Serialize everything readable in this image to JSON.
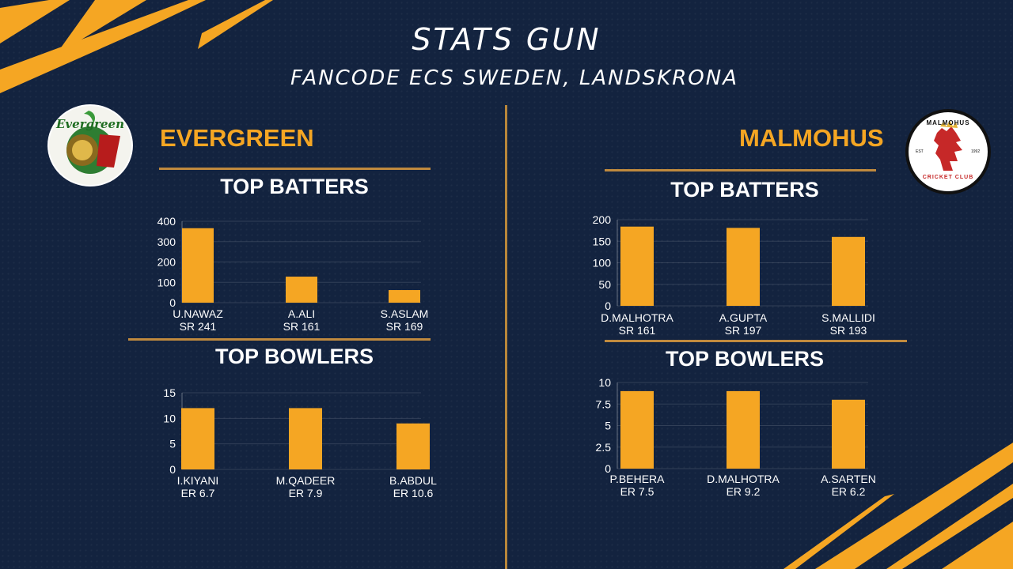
{
  "header": {
    "title": "STATS GUN",
    "subtitle": "FANCODE ECS SWEDEN, LANDSKRONA"
  },
  "teams": [
    {
      "name": "EVERGREEN",
      "logo_text": "Evergreen"
    },
    {
      "name": "MALMOHUS",
      "logo_text": "MALMOHUS",
      "logo_subtext": "CRICKET CLUB",
      "logo_est": "EST",
      "logo_year": "1992"
    }
  ],
  "sections": {
    "batters": "TOP BATTERS",
    "bowlers": "TOP BOWLERS"
  },
  "colors": {
    "bar": "#f5a623",
    "background": "#13233f",
    "accent_line": "#c08a3e",
    "team_name": "#f5a623"
  },
  "chart_data": [
    {
      "type": "bar",
      "title": "TOP BATTERS",
      "team": "EVERGREEN",
      "categories": [
        "U.NAWAZ",
        "A.ALI",
        "S.ASLAM"
      ],
      "sublabels": [
        "SR 241",
        "SR 161",
        "SR 169"
      ],
      "values": [
        366,
        128,
        62
      ],
      "ylim": [
        0,
        400
      ],
      "yticks": [
        "0",
        "100",
        "200",
        "300",
        "400"
      ],
      "grid": true
    },
    {
      "type": "bar",
      "title": "TOP BOWLERS",
      "team": "EVERGREEN",
      "categories": [
        "I.KIYANI",
        "M.QADEER",
        "B.ABDUL"
      ],
      "sublabels": [
        "ER 6.7",
        "ER 7.9",
        "ER 10.6"
      ],
      "values": [
        12,
        12,
        9
      ],
      "ylim": [
        0,
        15
      ],
      "yticks": [
        "0",
        "5",
        "10",
        "15"
      ],
      "grid": true
    },
    {
      "type": "bar",
      "title": "TOP BATTERS",
      "team": "MALMOHUS",
      "categories": [
        "D.MALHOTRA",
        "A.GUPTA",
        "S.MALLIDI"
      ],
      "sublabels": [
        "SR 161",
        "SR 197",
        "SR 193"
      ],
      "values": [
        184,
        181,
        160
      ],
      "ylim": [
        0,
        200
      ],
      "yticks": [
        "0",
        "50",
        "100",
        "150",
        "200"
      ],
      "grid": true
    },
    {
      "type": "bar",
      "title": "TOP BOWLERS",
      "team": "MALMOHUS",
      "categories": [
        "P.BEHERA",
        "D.MALHOTRA",
        "A.SARTEN"
      ],
      "sublabels": [
        "ER 7.5",
        "ER 9.2",
        "ER 6.2"
      ],
      "values": [
        9,
        9,
        8
      ],
      "ylim": [
        0,
        10
      ],
      "yticks": [
        "0",
        "2.5",
        "5",
        "7.5",
        "10"
      ],
      "grid": true
    }
  ]
}
